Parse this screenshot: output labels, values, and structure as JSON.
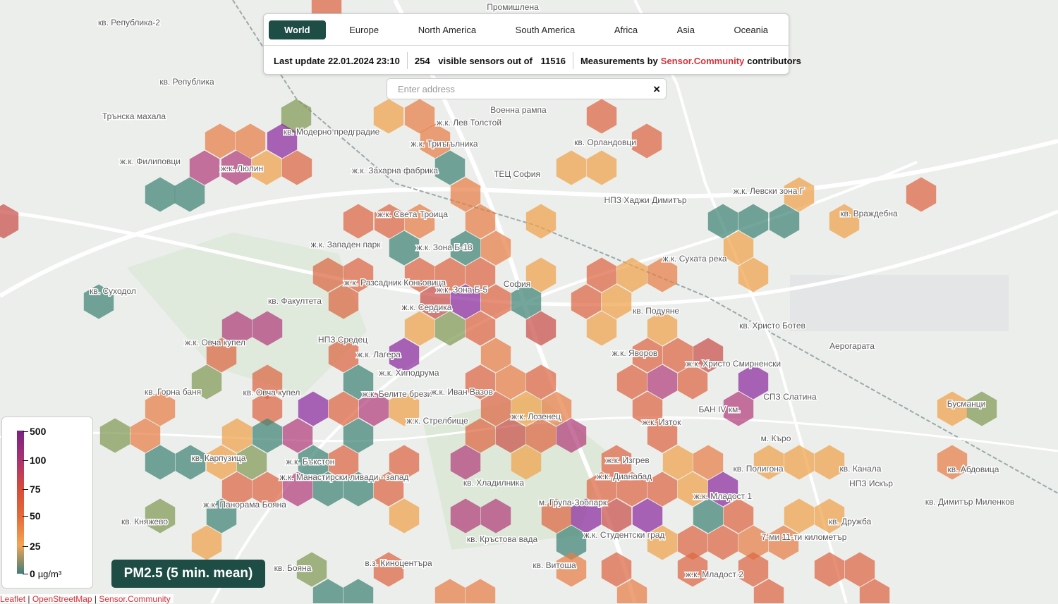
{
  "regions": [
    "World",
    "Europe",
    "North America",
    "South America",
    "Africa",
    "Asia",
    "Oceania"
  ],
  "selected_region": 0,
  "status": {
    "last_update_label": "Last update",
    "last_update": "22.01.2024 23:10",
    "visible_sensors": 254,
    "visible_text": "visible sensors out of",
    "total_sensors": 11516,
    "measurements_prefix": "Measurements by",
    "measurements_link": "Sensor.Community",
    "measurements_suffix": "contributors"
  },
  "search": {
    "placeholder": "Enter address",
    "clear": "×"
  },
  "legend": {
    "ticks": [
      500,
      100,
      75,
      50,
      25,
      0
    ],
    "unit": "µg/m³"
  },
  "pollutant_button": "PM2.5 (5 min. mean)",
  "attribution": {
    "links": [
      "Leaflet",
      "OpenStreetMap",
      "Sensor.Community"
    ],
    "separator": "|"
  },
  "map_labels": [
    "Промишлена",
    "кв. Република-2",
    "кв. Република",
    "Трънска махала",
    "ж.к. Филиповци",
    "ж.к. Люлин",
    "кв. Модерно предградие",
    "ж.к. Лев Толстой",
    "Военна рампа",
    "ж.к. Триъгълника",
    "ж.к. Захарна фабрика",
    "ТЕЦ София",
    "кв. Орландовци",
    "НПЗ Хаджи Димитър",
    "ж.к. Левски зона Г",
    "кв. Враждебна",
    "ж.к. Света Троица",
    "ж.к. Западен парк",
    "ж.к. Зона Б-18",
    "София",
    "ж.к. Сухата река",
    "ж.к. Разсадник Коньовица",
    "ж.к. Зона Б-5",
    "кв. Суходол",
    "кв. Факултета",
    "ж.к. Сердика",
    "кв. Подуяне",
    "кв. Христо Ботев",
    "Аерогарата",
    "ж.к. Овча купел",
    "НПЗ Средец",
    "ж.к. Лагера",
    "ж.к. Яворов",
    "ж.к. Христо Смирненски",
    "ж.к. Хиподрума",
    "ж.к. Белите брези",
    "ж.к. Иван Вазов",
    "СПЗ Слатина",
    "кв. Горна баня",
    "кв. Овча купел",
    "БАН IV км.",
    "Бусманци",
    "ж.к. Стрелбище",
    "ж.к. Лозенец",
    "ж.к. Изток",
    "м. Къро",
    "кв. Карпузица",
    "ж.к. Бъкстон",
    "ж.к. Изгрев",
    "кв. Полигона",
    "кв. Абдовица",
    "кв. Канала",
    "ж.к. Манастирски ливади - запад",
    "кв. Хладилника",
    "ж.к. Дианабад",
    "НПЗ Искър",
    "ж.к. Панорама Бояна",
    "м. Група-Зоопарк",
    "ж.к. Младост 1",
    "кв. Дружба",
    "кв. Княжево",
    "кв. Кръстова вада",
    "ж.к. Студентски град",
    "7-ми 11-ти километър",
    "кв. Витоша",
    "кв. Бояна",
    "в.з. Киноцентъра",
    "ж.к. Младост 2",
    "кв. Димитър Миленков"
  ]
}
